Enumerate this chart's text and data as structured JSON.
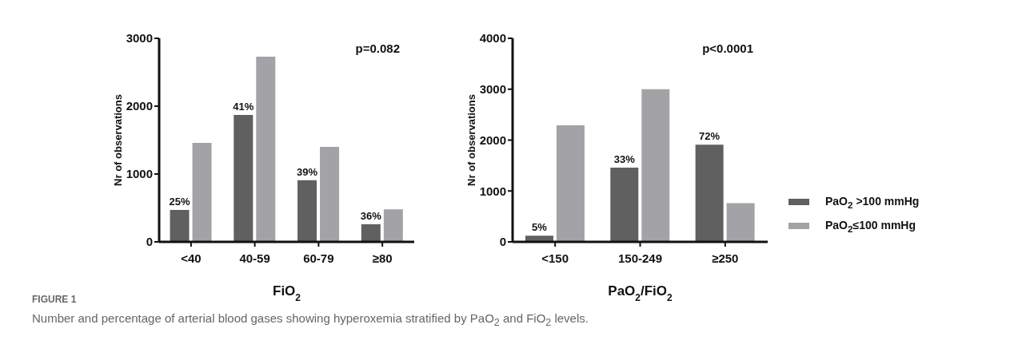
{
  "chart_data": [
    {
      "type": "bar",
      "xlabel": "FiO$_{2}$",
      "ylabel": "Nr of observations",
      "categories": [
        "<40",
        "40-59",
        "60-79",
        "≥80"
      ],
      "series": [
        {
          "color": "#606060",
          "values": [
            470,
            1870,
            910,
            260
          ]
        },
        {
          "color": "#a3a3a7",
          "values": [
            1460,
            2730,
            1400,
            480
          ]
        }
      ],
      "ylim": [
        0,
        3000
      ],
      "yticks": [
        0,
        1000,
        2000,
        3000
      ],
      "grid": false,
      "annotations": [
        "p=0.082",
        "FIGURE 1",
        "Number and percentage of arterial blood gases showing hyperoxemia stratified by PaO$_{2}$ and FiO$_{2}$ levels.",
        {
          "text": "25%",
          "x": "<40",
          "y": 470
        },
        {
          "text": "41%",
          "x": "40-59",
          "y": 1870
        },
        {
          "text": "39%",
          "x": "60-79",
          "y": 910
        },
        {
          "text": "36%",
          "x": "≥80",
          "y": 260
        }
      ]
    },
    {
      "type": "bar",
      "xlabel": "PaO$_{2}$/FiO$_{2}$",
      "ylabel": "Nr of observations",
      "categories": [
        "<150",
        "150-249",
        "≥250"
      ],
      "series": [
        {
          "name": "PaO$_{2}$ >100 mmHg",
          "color": "#606060",
          "values": [
            120,
            1460,
            1910
          ]
        },
        {
          "name": "PaO$_{2}$≤100 mmHg",
          "color": "#a3a3a7",
          "values": [
            2290,
            3000,
            760
          ]
        }
      ],
      "ylim": [
        0,
        4000
      ],
      "yticks": [
        0,
        1000,
        2000,
        3000,
        4000
      ],
      "grid": false,
      "legend": "right",
      "annotations": [
        "p<0.0001",
        {
          "text": "5%",
          "x": "<150",
          "y": 120
        },
        {
          "text": "33%",
          "x": "150-249",
          "y": 1460
        },
        {
          "text": "72%",
          "x": "≥250",
          "y": 1910
        }
      ]
    }
  ]
}
